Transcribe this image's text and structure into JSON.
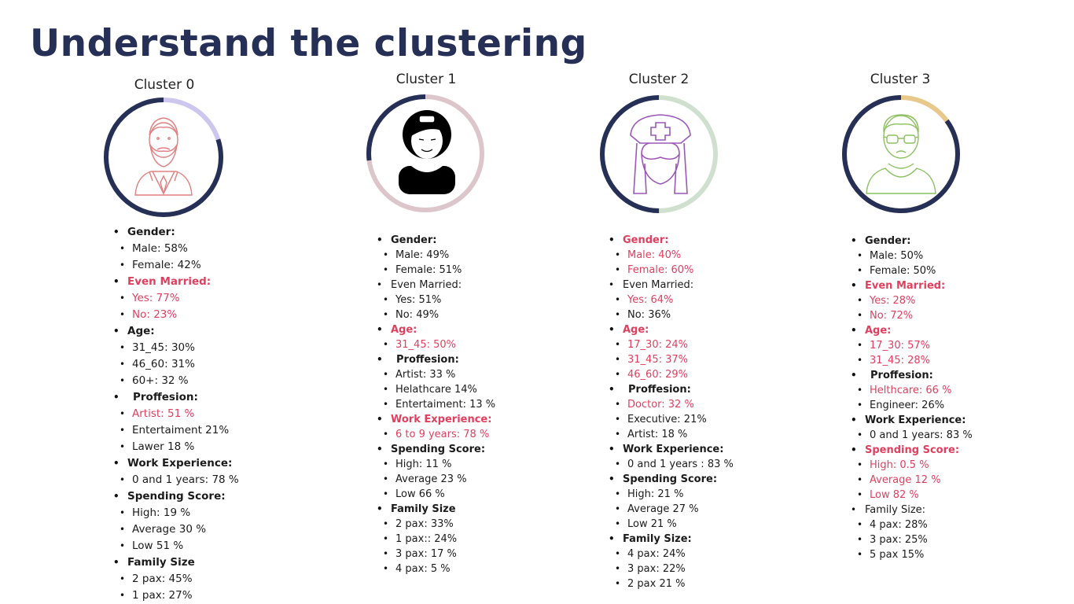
{
  "title": "Understand the clustering",
  "colors": {
    "ring_dark": "#263056",
    "highlight": "#e0405e",
    "title": "#263056"
  },
  "clusters": [
    {
      "name": "Cluster 0",
      "icon": "bearded-man-icon",
      "ring": {
        "dark_fraction": 0.8,
        "accent_color": "#cdc6ee",
        "icon_color": "#e08080"
      },
      "items": [
        {
          "text": "Gender:",
          "level": "head",
          "hl": false
        },
        {
          "text": "Male: 58%",
          "level": "sub",
          "hl": false
        },
        {
          "text": "Female: 42%",
          "level": "sub",
          "hl": false
        },
        {
          "text": "Even Married:",
          "level": "head",
          "hl": true
        },
        {
          "text": "Yes: 77%",
          "level": "sub",
          "hl": true
        },
        {
          "text": "No: 23%",
          "level": "sub",
          "hl": true
        },
        {
          "text": "Age:",
          "level": "head",
          "hl": false
        },
        {
          "text": "31_45: 30%",
          "level": "sub",
          "hl": false
        },
        {
          "text": "46_60: 31%",
          "level": "sub",
          "hl": false
        },
        {
          "text": "60+: 32 %",
          "level": "sub",
          "hl": false
        },
        {
          "text": "Proffesion:",
          "level": "head-indent",
          "hl": false
        },
        {
          "text": "Artist: 51 %",
          "level": "sub",
          "hl": true
        },
        {
          "text": "Entertaiment 21%",
          "level": "sub",
          "hl": false
        },
        {
          "text": "Lawer 18 %",
          "level": "sub",
          "hl": false
        },
        {
          "text": "Work Experience:",
          "level": "head",
          "hl": false
        },
        {
          "text": "0 and 1 years: 78 %",
          "level": "sub",
          "hl": false
        },
        {
          "text": "Spending Score:",
          "level": "head",
          "hl": false
        },
        {
          "text": "High: 19 %",
          "level": "sub",
          "hl": false
        },
        {
          "text": "Average 30 %",
          "level": "sub",
          "hl": false
        },
        {
          "text": "Low 51 %",
          "level": "sub",
          "hl": false
        },
        {
          "text": "Family Size",
          "level": "head",
          "hl": false
        },
        {
          "text": "2 pax: 45%",
          "level": "sub",
          "hl": false
        },
        {
          "text": "1 pax: 27%",
          "level": "sub",
          "hl": false
        }
      ]
    },
    {
      "name": "Cluster  1",
      "icon": "woman-with-bun-icon",
      "ring": {
        "dark_fraction": 0.27,
        "accent_color": "#ddc6cb",
        "icon_color": "#000000"
      },
      "items": [
        {
          "text": "Gender:",
          "level": "head",
          "hl": false
        },
        {
          "text": "Male: 49%",
          "level": "sub",
          "hl": false
        },
        {
          "text": "Female: 51%",
          "level": "sub",
          "hl": false
        },
        {
          "text": "Even Married:",
          "level": "plain",
          "hl": false
        },
        {
          "text": "Yes: 51%",
          "level": "sub",
          "hl": false
        },
        {
          "text": "No: 49%",
          "level": "sub",
          "hl": false
        },
        {
          "text": "Age:",
          "level": "head",
          "hl": true
        },
        {
          "text": "31_45: 50%",
          "level": "sub",
          "hl": true
        },
        {
          "text": "Proffesion:",
          "level": "head-indent",
          "hl": false
        },
        {
          "text": "Artist: 33 %",
          "level": "sub",
          "hl": false
        },
        {
          "text": "Helathcare 14%",
          "level": "sub",
          "hl": false
        },
        {
          "text": "Entertaiment: 13 %",
          "level": "sub",
          "hl": false
        },
        {
          "text": "Work Experience:",
          "level": "head",
          "hl": true
        },
        {
          "text": "6 to 9 years: 78 %",
          "level": "sub",
          "hl": true
        },
        {
          "text": "Spending Score:",
          "level": "head",
          "hl": false
        },
        {
          "text": "High: 11 %",
          "level": "sub",
          "hl": false
        },
        {
          "text": "Average 23 %",
          "level": "sub",
          "hl": false
        },
        {
          "text": "Low 66 %",
          "level": "sub",
          "hl": false
        },
        {
          "text": "Family Size",
          "level": "head",
          "hl": false
        },
        {
          "text": "2 pax: 33%",
          "level": "sub",
          "hl": false
        },
        {
          "text": "1 pax:: 24%",
          "level": "sub",
          "hl": false
        },
        {
          "text": "3 pax: 17 %",
          "level": "sub",
          "hl": false
        },
        {
          "text": "4 pax: 5 %",
          "level": "sub",
          "hl": false
        }
      ]
    },
    {
      "name": "Cluster 2",
      "icon": "nurse-icon",
      "ring": {
        "dark_fraction": 0.5,
        "accent_color": "#cfe0cf",
        "icon_color": "#9b59b6"
      },
      "items": [
        {
          "text": "Gender:",
          "level": "head",
          "hl": true
        },
        {
          "text": "Male: 40%",
          "level": "sub",
          "hl": true
        },
        {
          "text": "Female: 60%",
          "level": "sub",
          "hl": true
        },
        {
          "text": "Even Married:",
          "level": "plain",
          "hl": false
        },
        {
          "text": "Yes: 64%",
          "level": "sub",
          "hl": true
        },
        {
          "text": "No: 36%",
          "level": "sub",
          "hl": false
        },
        {
          "text": "Age:",
          "level": "head",
          "hl": true
        },
        {
          "text": "17_30: 24%",
          "level": "sub",
          "hl": true
        },
        {
          "text": "31_45: 37%",
          "level": "sub",
          "hl": true
        },
        {
          "text": "46_60: 29%",
          "level": "sub",
          "hl": true
        },
        {
          "text": "Proffesion:",
          "level": "head-indent",
          "hl": false
        },
        {
          "text": "Doctor: 32 %",
          "level": "sub",
          "hl": true
        },
        {
          "text": "Executive: 21%",
          "level": "sub",
          "hl": false
        },
        {
          "text": "Artist: 18 %",
          "level": "sub",
          "hl": false
        },
        {
          "text": "Work Experience:",
          "level": "head",
          "hl": false
        },
        {
          "text": "0 and 1  years : 83 %",
          "level": "sub",
          "hl": false
        },
        {
          "text": "Spending Score:",
          "level": "head",
          "hl": false
        },
        {
          "text": "High: 21 %",
          "level": "sub",
          "hl": false
        },
        {
          "text": "Average 27 %",
          "level": "sub",
          "hl": false
        },
        {
          "text": "Low 21 %",
          "level": "sub",
          "hl": false
        },
        {
          "text": "Family Size:",
          "level": "head",
          "hl": false
        },
        {
          "text": "4 pax: 24%",
          "level": "sub",
          "hl": false
        },
        {
          "text": "3 pax: 22%",
          "level": "sub",
          "hl": false
        },
        {
          "text": "2 pax 21 %",
          "level": "sub",
          "hl": false
        }
      ]
    },
    {
      "name": "Cluster   3",
      "icon": "man-with-glasses-icon",
      "ring": {
        "dark_fraction": 0.85,
        "accent_color": "#e8c98c",
        "icon_color": "#8cc060"
      },
      "items": [
        {
          "text": "Gender:",
          "level": "head",
          "hl": false
        },
        {
          "text": "Male: 50%",
          "level": "sub",
          "hl": false
        },
        {
          "text": "Female: 50%",
          "level": "sub",
          "hl": false
        },
        {
          "text": "Even Married:",
          "level": "head",
          "hl": true
        },
        {
          "text": "Yes: 28%",
          "level": "sub",
          "hl": true
        },
        {
          "text": "No: 72%",
          "level": "sub",
          "hl": true
        },
        {
          "text": "Age:",
          "level": "head",
          "hl": true
        },
        {
          "text": "17_30: 57%",
          "level": "sub",
          "hl": true
        },
        {
          "text": "31_45: 28%",
          "level": "sub",
          "hl": true
        },
        {
          "text": "Proffesion:",
          "level": "head-indent",
          "hl": false
        },
        {
          "text": "Helthcare: 66 %",
          "level": "sub",
          "hl": true
        },
        {
          "text": "Engineer: 26%",
          "level": "sub",
          "hl": false
        },
        {
          "text": "Work Experience:",
          "level": "head",
          "hl": false
        },
        {
          "text": "0 and 1 years: 83 %",
          "level": "sub",
          "hl": false
        },
        {
          "text": "Spending Score:",
          "level": "head",
          "hl": true
        },
        {
          "text": "High: 0.5 %",
          "level": "sub",
          "hl": true
        },
        {
          "text": "Average 12 %",
          "level": "sub",
          "hl": true
        },
        {
          "text": "Low 82 %",
          "level": "sub",
          "hl": true
        },
        {
          "text": "Family Size:",
          "level": "plain",
          "hl": false
        },
        {
          "text": "4 pax: 28%",
          "level": "sub",
          "hl": false
        },
        {
          "text": "3 pax: 25%",
          "level": "sub",
          "hl": false
        },
        {
          "text": "5 pax 15%",
          "level": "sub",
          "hl": false
        }
      ]
    }
  ]
}
